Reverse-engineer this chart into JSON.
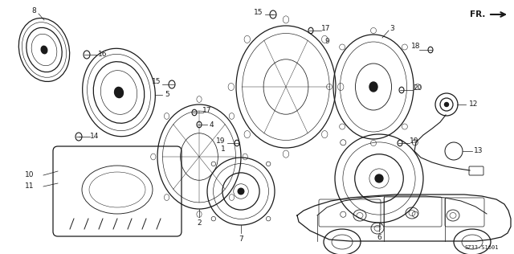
{
  "bg_color": "#ffffff",
  "line_color": "#1a1a1a",
  "diagram_code": "SZ33-S1601",
  "fig_width": 6.4,
  "fig_height": 3.16
}
